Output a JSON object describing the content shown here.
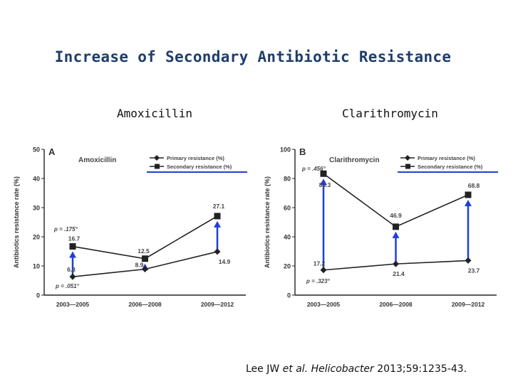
{
  "slide": {
    "title": "Increase of Secondary Antibiotic Resistance",
    "subhead_left": "Amoxicillin",
    "subhead_right": "Clarithromycin"
  },
  "citation": {
    "authors": "Lee JW ",
    "etal": "et al.",
    "journal": "Helicobacter",
    "ref": " 2013;59:1235-43."
  },
  "colors": {
    "title": "#1f3d6b",
    "series": "#222222",
    "arrow": "#1f3fd6",
    "legend_underline": "#1f3fd6"
  },
  "chart_data": [
    {
      "type": "line",
      "panel_label": "A",
      "title": "Amoxicillin",
      "ylabel": "Antibiotics resistance rate (%)",
      "ylim": [
        0,
        50
      ],
      "yticks": [
        0,
        10,
        20,
        30,
        40,
        50
      ],
      "categories": [
        "2003—2005",
        "2006—2008",
        "2009—2012"
      ],
      "series": [
        {
          "name": "Primary resistance (%)",
          "marker": "diamond",
          "values": [
            6.3,
            8.9,
            14.9
          ],
          "labels": [
            "6.3",
            "8.9",
            "14.9"
          ]
        },
        {
          "name": "Secondary resistance (%)",
          "marker": "square",
          "values": [
            16.7,
            12.5,
            27.1
          ],
          "labels": [
            "16.7",
            "12.5",
            "27.1"
          ]
        }
      ],
      "pvalues": [
        "p = .175°",
        "p = .051°"
      ],
      "arrows_at": [
        0,
        1,
        2
      ],
      "legend_position": "top-right"
    },
    {
      "type": "line",
      "panel_label": "B",
      "title": "Clarithromycin",
      "ylabel": "Antibiotics resistance rate (%)",
      "ylim": [
        0,
        100
      ],
      "yticks": [
        0,
        20,
        40,
        60,
        80,
        100
      ],
      "categories": [
        "2003—2005",
        "2006—2008",
        "2009—2012"
      ],
      "series": [
        {
          "name": "Primary resistance (%)",
          "marker": "diamond",
          "values": [
            17.2,
            21.4,
            23.7
          ],
          "labels": [
            "17.2",
            "21.4",
            "23.7"
          ]
        },
        {
          "name": "Secondary resistance (%)",
          "marker": "square",
          "values": [
            83.3,
            46.9,
            68.8
          ],
          "labels": [
            "83.3",
            "46.9",
            "68.8"
          ]
        }
      ],
      "pvalues": [
        "p = .456°",
        "p = .323°"
      ],
      "arrows_at": [
        0,
        1,
        2
      ],
      "legend_position": "top-right"
    }
  ]
}
